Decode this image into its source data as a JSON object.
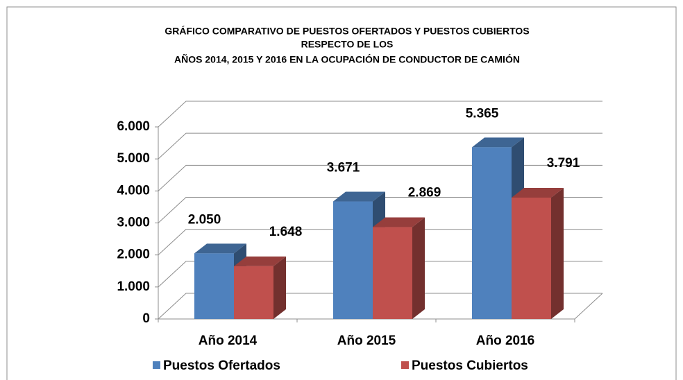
{
  "chart_data": {
    "type": "bar3d",
    "title": [
      "GRÁFICO COMPARATIVO DE PUESTOS OFERTADOS Y PUESTOS CUBIERTOS",
      "RESPECTO DE LOS",
      "AÑOS  2014, 2015 Y 2016  EN LA OCUPACIÓN DE CONDUCTOR DE CAMIÓN"
    ],
    "categories": [
      "Año 2014",
      "Año 2015",
      "Año 2016"
    ],
    "series": [
      {
        "name": "Puestos Ofertados",
        "color": "#4f81bd",
        "values": [
          2050,
          3671,
          5365
        ],
        "value_labels": [
          "2.050",
          "3.671",
          "5.365"
        ]
      },
      {
        "name": "Puestos Cubiertos",
        "color": "#c0504d",
        "values": [
          1648,
          2869,
          3791
        ],
        "value_labels": [
          "1.648",
          "2.869",
          "3.791"
        ]
      }
    ],
    "ylim": [
      0,
      6000
    ],
    "yticks": [
      0,
      {
        "value": 1000,
        "label": "1.000"
      },
      {
        "value": 2000,
        "label": "2.000"
      },
      {
        "value": 3000,
        "label": "3.000"
      },
      {
        "value": 4000,
        "label": "4.000"
      },
      {
        "value": 5000,
        "label": "5.000"
      },
      {
        "value": 6000,
        "label": "6.000"
      }
    ],
    "grid": true,
    "legend": "bottom"
  }
}
